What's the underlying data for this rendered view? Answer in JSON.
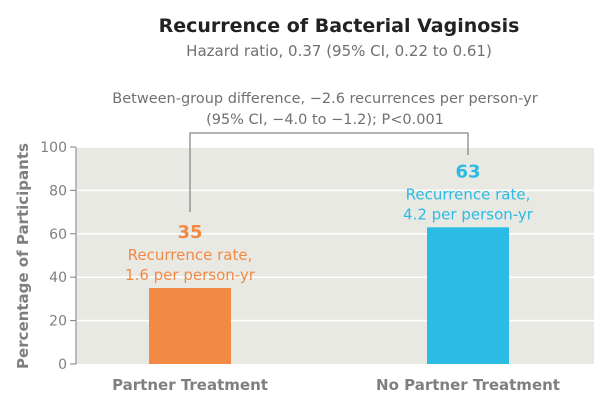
{
  "chart_data": {
    "type": "bar",
    "title": "Recurrence of Bacterial Vaginosis",
    "subtitle": "Hazard ratio, 0.37 (95% CI, 0.22 to 0.61)",
    "comparison_annotation": [
      "Between-group difference, −2.6 recurrences per person-yr",
      "(95% CI, −4.0 to −1.2); P<0.001"
    ],
    "ylabel": "Percentage of Participants",
    "xlabel": "",
    "ylim": [
      0,
      100
    ],
    "yticks": [
      0,
      20,
      40,
      60,
      80,
      100
    ],
    "grid": true,
    "categories": [
      "Partner Treatment",
      "No Partner Treatment"
    ],
    "values": [
      35,
      63
    ],
    "value_labels": [
      "35",
      "63"
    ],
    "bar_annotations": [
      [
        "Recurrence rate,",
        "1.6 per person-yr"
      ],
      [
        "Recurrence rate,",
        "4.2 per person-yr"
      ]
    ],
    "colors": [
      "#f28a45",
      "#2bbbe4"
    ]
  },
  "style": {
    "plot_background": "#e9e9e4",
    "gridline_color": "#ffffff",
    "axis_text_color": "#7f7f7f",
    "title_color": "#222222",
    "subtitle_color": "#707070",
    "bracket_color": "#888888"
  }
}
